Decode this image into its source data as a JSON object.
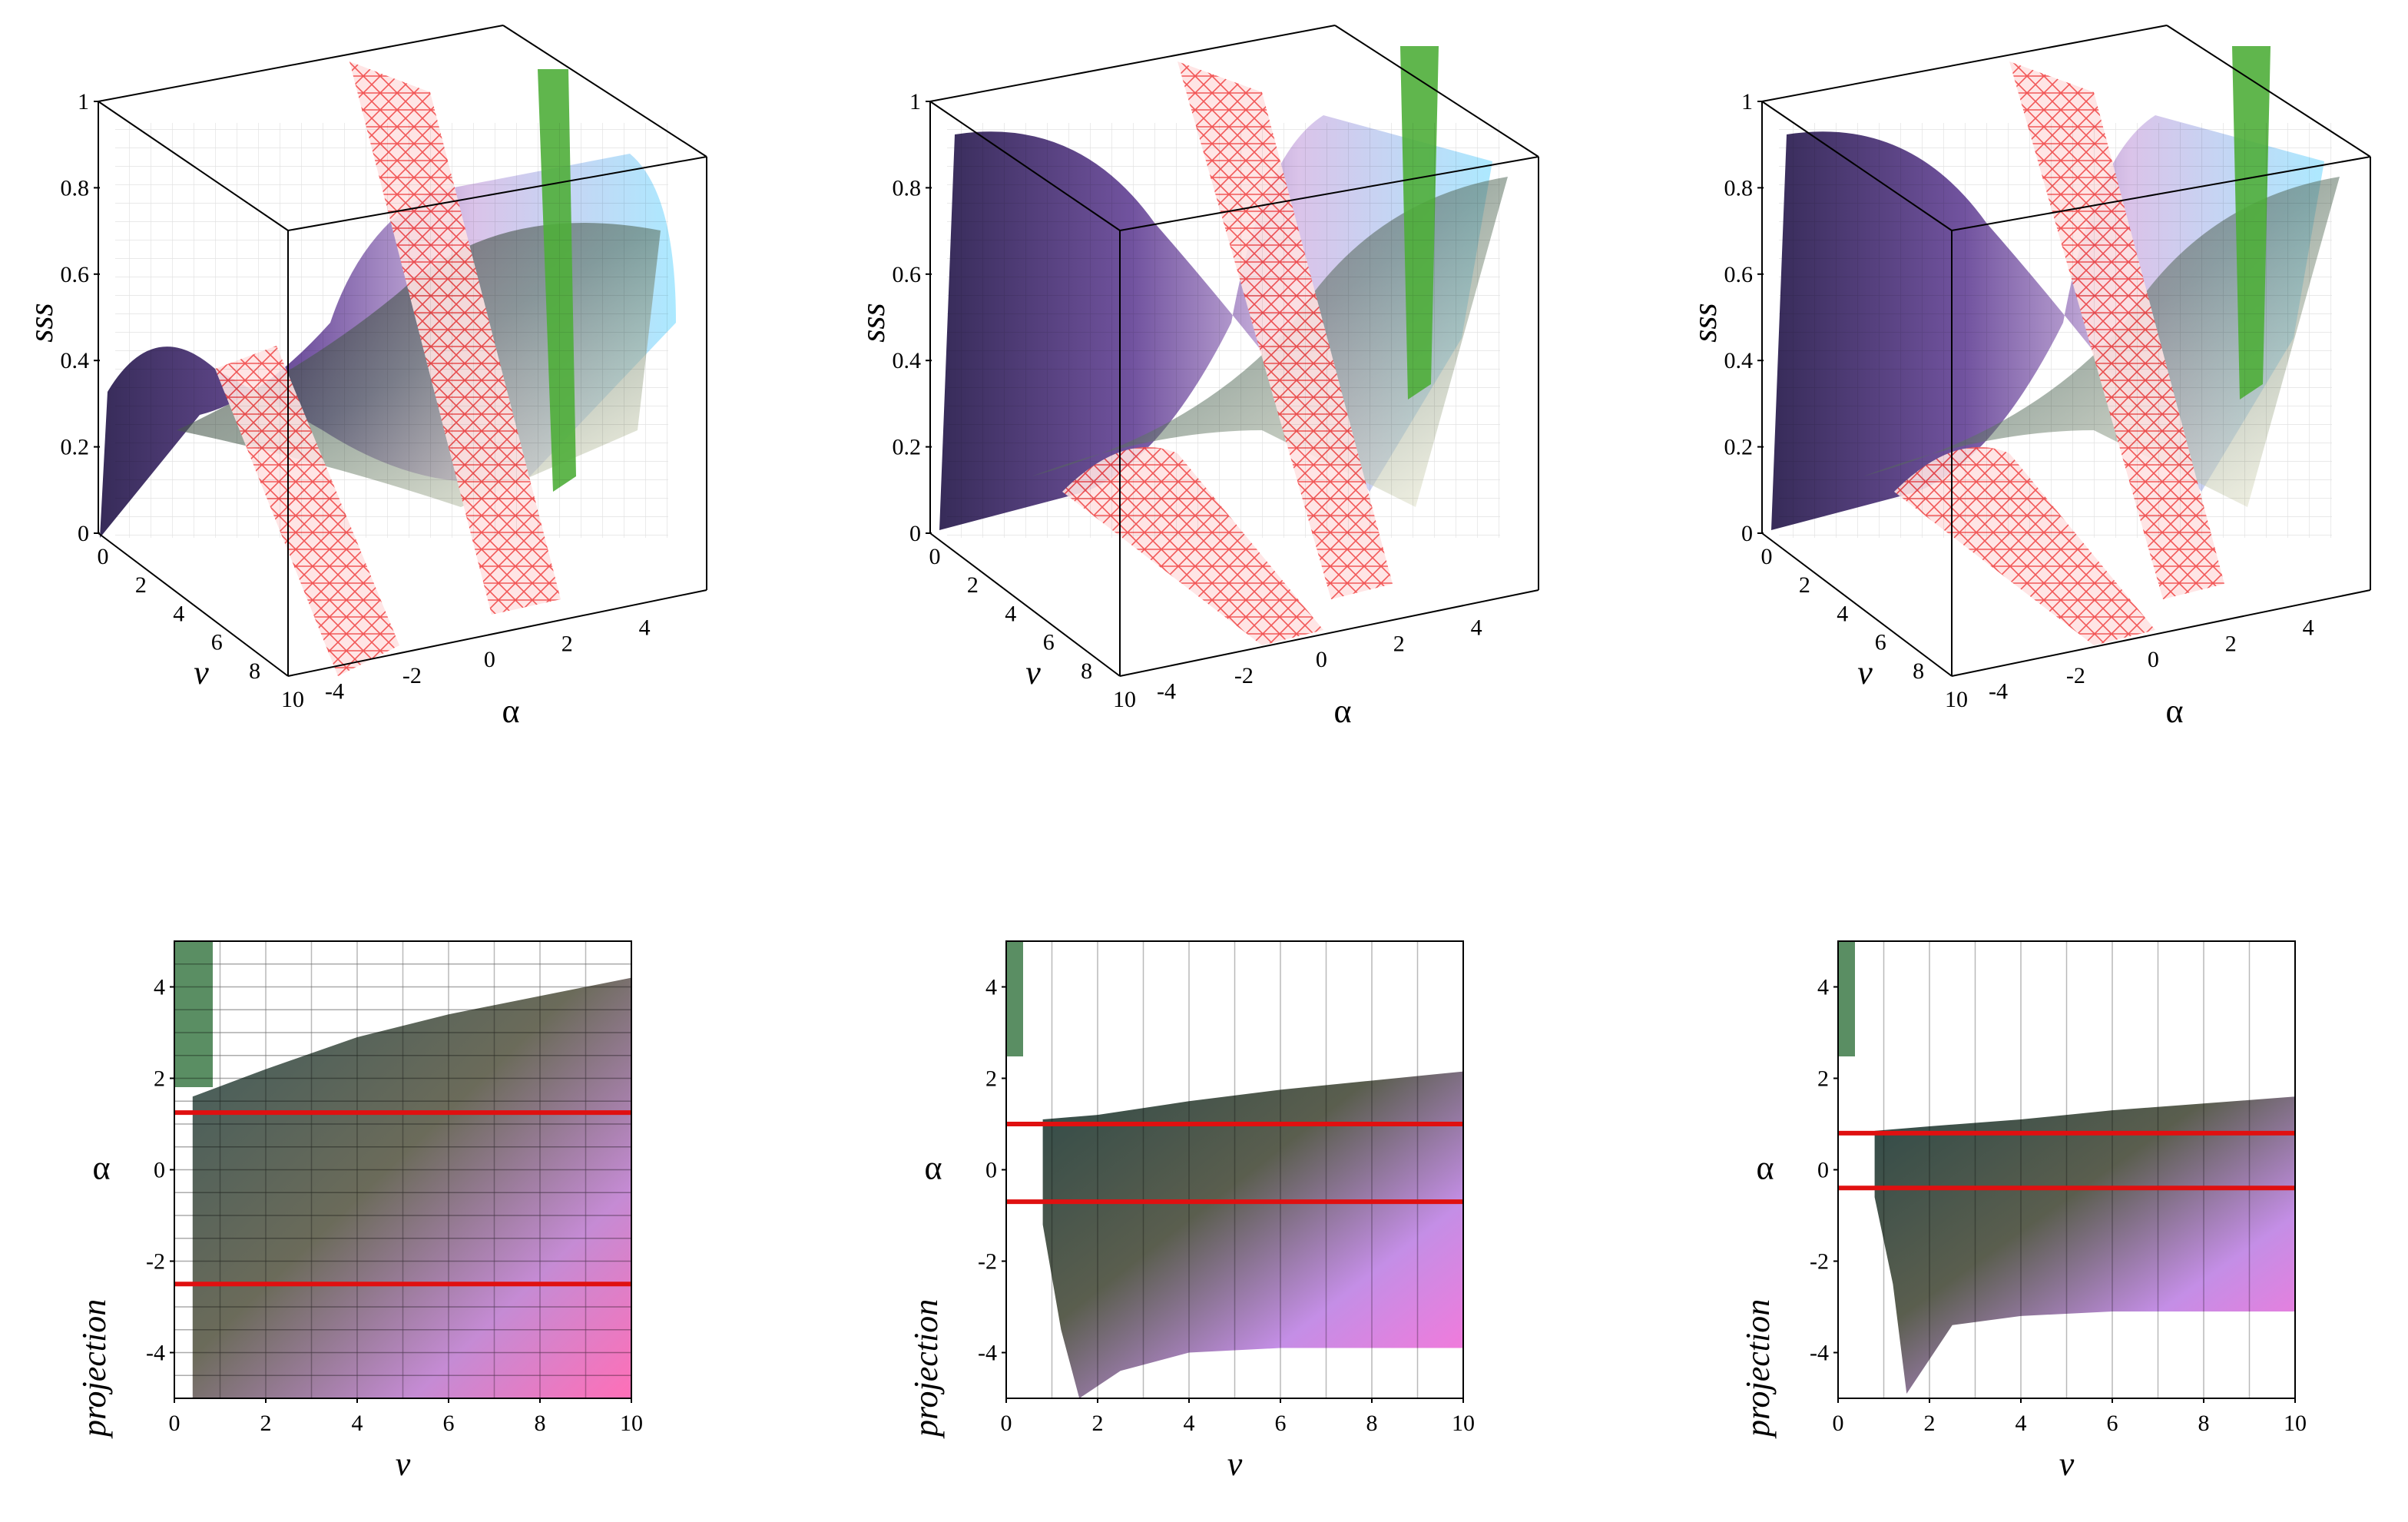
{
  "figure": {
    "panels_3d": [
      {
        "zlabel": "sss",
        "ylabel": "v",
        "xlabel": "α",
        "zticks": [
          "0",
          "0.2",
          "0.4",
          "0.6",
          "0.8",
          "1"
        ],
        "vticks": [
          "0",
          "2",
          "4",
          "6",
          "8",
          "10"
        ],
        "aticks": [
          "-4",
          "-2",
          "0",
          "2",
          "4"
        ]
      },
      {
        "zlabel": "sss",
        "ylabel": "v",
        "xlabel": "α",
        "zticks": [
          "0",
          "0.2",
          "0.4",
          "0.6",
          "0.8",
          "1"
        ],
        "vticks": [
          "0",
          "2",
          "4",
          "6",
          "8",
          "10"
        ],
        "aticks": [
          "-4",
          "-2",
          "0",
          "2",
          "4"
        ]
      },
      {
        "zlabel": "sss",
        "ylabel": "v",
        "xlabel": "α",
        "zticks": [
          "0",
          "0.2",
          "0.4",
          "0.6",
          "0.8",
          "1"
        ],
        "vticks": [
          "0",
          "2",
          "4",
          "6",
          "8",
          "10"
        ],
        "aticks": [
          "-4",
          "-2",
          "0",
          "2",
          "4"
        ]
      }
    ],
    "panels_2d": [
      {
        "ylabel_top": "α",
        "ylabel_bottom": "projection",
        "xlabel": "v",
        "xticks": [
          "0",
          "2",
          "4",
          "6",
          "8",
          "10"
        ],
        "yticks": [
          "4",
          "2",
          "0",
          "-2",
          "-4"
        ],
        "red_lines_alpha": [
          1.25,
          -2.5
        ],
        "upper_boundary": [
          [
            0.4,
            1.6
          ],
          [
            2,
            2.2
          ],
          [
            4,
            2.9
          ],
          [
            6,
            3.4
          ],
          [
            8,
            3.8
          ],
          [
            10,
            4.2
          ]
        ]
      },
      {
        "ylabel_top": "α",
        "ylabel_bottom": "projection",
        "xlabel": "v",
        "xticks": [
          "0",
          "2",
          "4",
          "6",
          "8",
          "10"
        ],
        "yticks": [
          "4",
          "2",
          "0",
          "-2",
          "-4"
        ],
        "red_lines_alpha": [
          1.0,
          -0.7
        ],
        "upper_boundary": [
          [
            0.8,
            1.1
          ],
          [
            2,
            1.2
          ],
          [
            4,
            1.5
          ],
          [
            6,
            1.75
          ],
          [
            8,
            1.95
          ],
          [
            10,
            2.15
          ]
        ],
        "lower_boundary": [
          [
            0.8,
            -1.2
          ],
          [
            1.2,
            -3.5
          ],
          [
            1.6,
            -5.0
          ],
          [
            2.5,
            -4.4
          ],
          [
            4,
            -4.0
          ],
          [
            6,
            -3.9
          ],
          [
            10,
            -3.9
          ]
        ]
      },
      {
        "ylabel_top": "α",
        "ylabel_bottom": "projection",
        "xlabel": "v",
        "xticks": [
          "0",
          "2",
          "4",
          "6",
          "8",
          "10"
        ],
        "yticks": [
          "4",
          "2",
          "0",
          "-2",
          "-4"
        ],
        "red_lines_alpha": [
          0.8,
          -0.4
        ],
        "upper_boundary": [
          [
            0.8,
            0.85
          ],
          [
            2,
            0.95
          ],
          [
            4,
            1.1
          ],
          [
            6,
            1.3
          ],
          [
            8,
            1.45
          ],
          [
            10,
            1.6
          ]
        ],
        "lower_boundary": [
          [
            0.8,
            -0.6
          ],
          [
            1.2,
            -2.5
          ],
          [
            1.5,
            -4.9
          ],
          [
            2.5,
            -3.4
          ],
          [
            4,
            -3.2
          ],
          [
            6,
            -3.1
          ],
          [
            10,
            -3.1
          ]
        ]
      }
    ]
  },
  "chart_data": [
    {
      "type": "surface3d",
      "title": "",
      "zlabel": "sss",
      "ylabel": "v",
      "xlabel": "α",
      "x_range": [
        -5,
        5
      ],
      "y_range": [
        0,
        10
      ],
      "z_range": [
        0,
        1
      ]
    },
    {
      "type": "surface3d",
      "title": "",
      "zlabel": "sss",
      "ylabel": "v",
      "xlabel": "α",
      "x_range": [
        -5,
        5
      ],
      "y_range": [
        0,
        10
      ],
      "z_range": [
        0,
        1
      ]
    },
    {
      "type": "surface3d",
      "title": "",
      "zlabel": "sss",
      "ylabel": "v",
      "xlabel": "α",
      "x_range": [
        -5,
        5
      ],
      "y_range": [
        0,
        10
      ],
      "z_range": [
        0,
        1
      ]
    },
    {
      "type": "heatmap",
      "xlabel": "v",
      "ylabel": "α projection",
      "xlim": [
        0,
        10
      ],
      "ylim": [
        -5,
        5
      ],
      "horizontal_lines": [
        1.25,
        -2.5
      ]
    },
    {
      "type": "heatmap",
      "xlabel": "v",
      "ylabel": "α projection",
      "xlim": [
        0,
        10
      ],
      "ylim": [
        -5,
        5
      ],
      "horizontal_lines": [
        1.0,
        -0.7
      ]
    },
    {
      "type": "heatmap",
      "xlabel": "v",
      "ylabel": "α projection",
      "xlim": [
        0,
        10
      ],
      "ylim": [
        -5,
        5
      ],
      "horizontal_lines": [
        0.8,
        -0.4
      ]
    }
  ]
}
